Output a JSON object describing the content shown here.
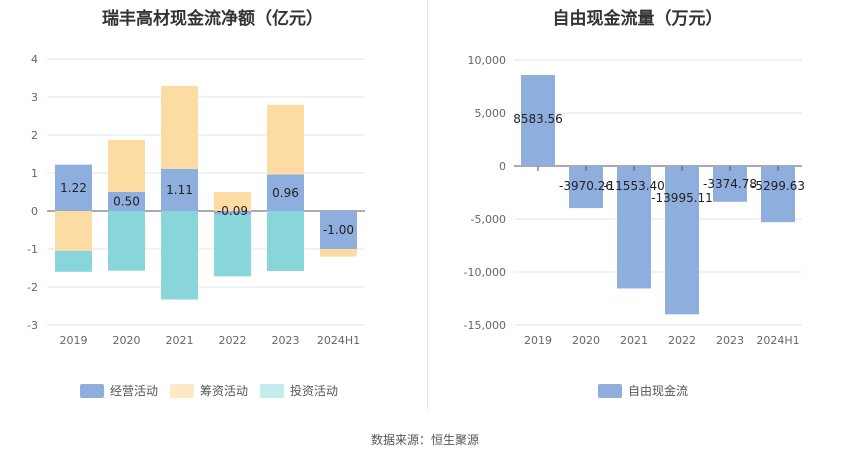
{
  "source": "数据来源：恒生聚源",
  "chart_data": [
    {
      "type": "bar",
      "stacked": true,
      "title": "瑞丰高材现金流净额（亿元）",
      "categories": [
        "2019",
        "2020",
        "2021",
        "2022",
        "2023",
        "2024H1"
      ],
      "ylim": [
        -3,
        4
      ],
      "yticks": [
        4,
        3,
        2,
        1,
        0,
        -1,
        -2,
        -3
      ],
      "grid": true,
      "legend_position": "bottom",
      "series": [
        {
          "name": "经营活动",
          "color": "#8eaede",
          "values": [
            1.22,
            0.5,
            1.11,
            -0.09,
            0.96,
            -1.0
          ],
          "labels": [
            "1.22",
            "0.50",
            "1.11",
            "-0.09",
            "0.96",
            "-1.00"
          ]
        },
        {
          "name": "筹资活动",
          "color": "#fcdca3",
          "values": [
            -1.05,
            1.37,
            2.18,
            0.5,
            1.83,
            -0.2
          ]
        },
        {
          "name": "投资活动",
          "color": "#88d6d9",
          "values": [
            -0.55,
            -1.57,
            -2.33,
            -1.63,
            -1.58,
            0
          ]
        }
      ]
    },
    {
      "type": "bar",
      "title": "自由现金流量（万元）",
      "categories": [
        "2019",
        "2020",
        "2021",
        "2022",
        "2023",
        "2024H1"
      ],
      "ylim": [
        -15000,
        10000
      ],
      "yticks": [
        10000,
        5000,
        0,
        -5000,
        -10000,
        -15000
      ],
      "ytick_labels": [
        "10,000",
        "5,000",
        "0",
        "-5,000",
        "-10,000",
        "-15,000"
      ],
      "grid": true,
      "legend_position": "bottom",
      "series": [
        {
          "name": "自由现金流",
          "color": "#8eaede",
          "values": [
            8583.56,
            -3970.26,
            -11553.4,
            -13995.11,
            -3374.78,
            -5299.63
          ],
          "labels": [
            "8583.56",
            "-3970.26",
            "-11553.40",
            "-13995.11",
            "-3374.78",
            "-5299.63"
          ]
        }
      ]
    }
  ]
}
